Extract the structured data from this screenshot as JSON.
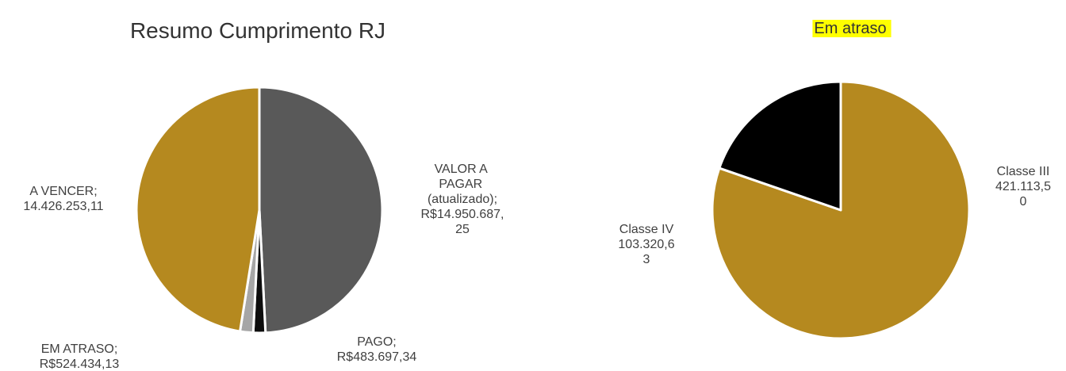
{
  "chart_data": [
    {
      "type": "pie",
      "title": "Resumo Cumprimento RJ",
      "categories": [
        "VALOR A PAGAR (atualizado);",
        "PAGO;",
        "EM ATRASO;",
        "A VENCER;"
      ],
      "values": [
        14950687.25,
        483697.34,
        524434.13,
        14426253.11
      ],
      "value_labels": [
        "R$14.950.687,25",
        "R$483.697,34",
        "R$524.434,13",
        "14.426.253,11"
      ],
      "colors": [
        "#595959",
        "#0d0d0d",
        "#a6a6a6",
        "#b5891f"
      ]
    },
    {
      "type": "pie",
      "title": "Em atraso",
      "categories": [
        "Classe III",
        "Classe IV"
      ],
      "values": [
        421113.5,
        103320.63
      ],
      "value_labels": [
        "421.113,50",
        "103.320,63"
      ],
      "colors": [
        "#b5891f",
        "#000000"
      ]
    }
  ]
}
